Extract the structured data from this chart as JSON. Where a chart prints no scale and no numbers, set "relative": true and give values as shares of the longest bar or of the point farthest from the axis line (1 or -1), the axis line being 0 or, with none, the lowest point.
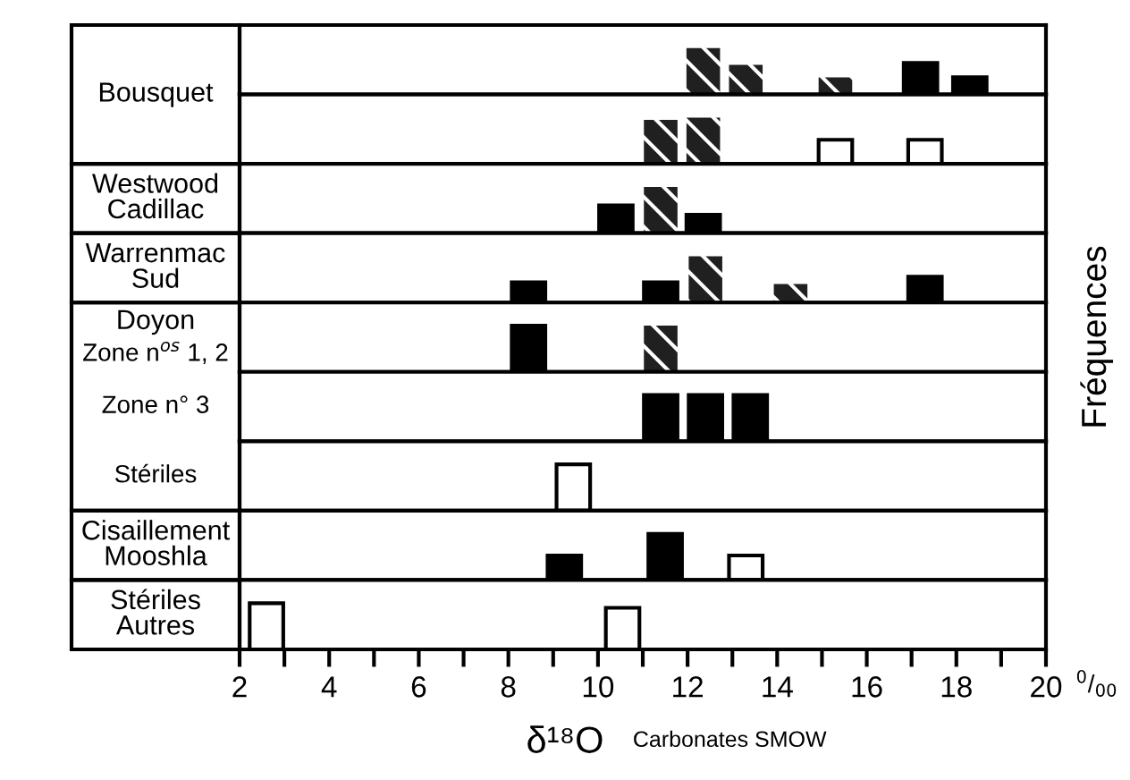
{
  "chart_data": [
    {
      "type": "bar",
      "title": "Bousquet",
      "ylabel": "Fréquences",
      "relative": true,
      "xlim": [
        2,
        20
      ],
      "tick_labels": false,
      "x": [
        12.35,
        13.3,
        15.3,
        17.2,
        18.3
      ],
      "series": [
        {
          "color": "#000000",
          "values": [
            null,
            null,
            null,
            0.68,
            0.37
          ]
        },
        {
          "color": "#202020",
          "values": [
            1,
            0.64,
            0.37,
            null,
            null
          ]
        }
      ]
    },
    {
      "type": "bar",
      "relative": true,
      "xlim": [
        2,
        20
      ],
      "tick_labels": false,
      "x": [
        11.4,
        12.35,
        15.3,
        17.3
      ],
      "series": [
        {
          "color": "#202020",
          "values": [
            0.95,
            1,
            null,
            null
          ]
        },
        {
          "color": "#ffffff",
          "values": [
            null,
            null,
            0.52,
            0.52
          ]
        }
      ]
    },
    {
      "type": "bar",
      "title": "Westwood\nCadillac",
      "relative": true,
      "xlim": [
        2,
        20
      ],
      "tick_labels": false,
      "x": [
        10.4,
        11.4,
        12.35
      ],
      "series": [
        {
          "color": "#000000",
          "values": [
            0.6,
            null,
            0.4
          ]
        },
        {
          "color": "#202020",
          "values": [
            null,
            1,
            null
          ]
        }
      ]
    },
    {
      "type": "bar",
      "title": "Warrenmac\nSud",
      "relative": true,
      "xlim": [
        2,
        20
      ],
      "tick_labels": false,
      "x": [
        8.45,
        11.4,
        12.4,
        14.3,
        17.3
      ],
      "series": [
        {
          "color": "#000000",
          "values": [
            0.44,
            0.44,
            null,
            null,
            0.56
          ]
        },
        {
          "color": "#202020",
          "values": [
            null,
            null,
            1,
            0.4,
            null
          ]
        }
      ]
    },
    {
      "type": "bar",
      "title": "Doyon",
      "subtitle": "Zone n$^{os}$ 1, 2",
      "relative": true,
      "xlim": [
        2,
        20
      ],
      "tick_labels": false,
      "x": [
        8.45,
        11.4
      ],
      "series": [
        {
          "color": "#000000",
          "values": [
            1,
            null
          ]
        },
        {
          "color": "#202020",
          "values": [
            null,
            1
          ]
        }
      ]
    },
    {
      "type": "bar",
      "subtitle": "Zone n° 3",
      "relative": true,
      "xlim": [
        2,
        20
      ],
      "tick_labels": false,
      "x": [
        11.4,
        12.4,
        13.4
      ],
      "series": [
        {
          "color": "#000000",
          "values": [
            1,
            1,
            1
          ]
        }
      ]
    },
    {
      "type": "bar",
      "subtitle": "Stériles",
      "relative": true,
      "xlim": [
        2,
        20
      ],
      "tick_labels": false,
      "x": [
        9.45
      ],
      "series": [
        {
          "color": "#ffffff",
          "values": [
            1
          ]
        }
      ]
    },
    {
      "type": "bar",
      "title": "Cisaillement\nMooshla",
      "relative": true,
      "xlim": [
        2,
        20
      ],
      "tick_labels": false,
      "x": [
        9.25,
        11.5,
        13.3
      ],
      "series": [
        {
          "color": "#000000",
          "values": [
            0.53,
            1,
            null
          ]
        },
        {
          "color": "#ffffff",
          "values": [
            null,
            null,
            0.53
          ]
        }
      ]
    },
    {
      "type": "bar",
      "title": "Stériles\nAutres",
      "xlabel": "δ¹⁸O",
      "annotations": [
        "$^{0}$/$_{00}$",
        "Carbonates SMOW"
      ],
      "relative": true,
      "xlim": [
        2,
        20
      ],
      "tick_labels": "x",
      "xticks": [
        2,
        {
          "value": 3,
          "label": null
        },
        4,
        {
          "value": 5,
          "label": null
        },
        6,
        {
          "value": 7,
          "label": null
        },
        8,
        {
          "value": 9,
          "label": null
        },
        10,
        {
          "value": 11,
          "label": null
        },
        12,
        {
          "value": 13,
          "label": null
        },
        14,
        {
          "value": 15,
          "label": null
        },
        16,
        {
          "value": 17,
          "label": null
        },
        18,
        {
          "value": 19,
          "label": null
        },
        20
      ],
      "x": [
        2.6,
        10.55
      ],
      "series": [
        {
          "color": "#ffffff",
          "values": [
            1,
            0.9
          ]
        }
      ]
    }
  ]
}
